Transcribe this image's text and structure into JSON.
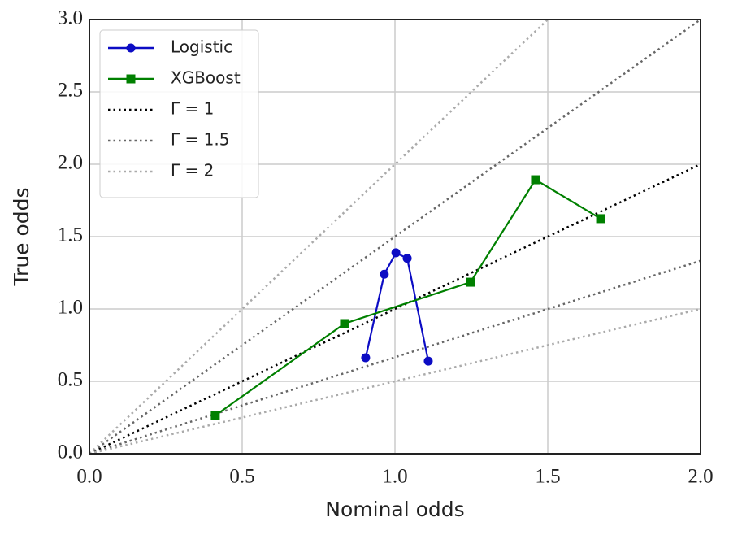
{
  "chart_data": {
    "type": "line",
    "xlabel": "Nominal odds",
    "ylabel": "True odds",
    "xlim": [
      0,
      2
    ],
    "ylim": [
      0,
      3
    ],
    "xticks": [
      {
        "value": 0,
        "label": "0.0"
      },
      0.5,
      {
        "value": 1,
        "label": "1.0"
      },
      1.5,
      {
        "value": 2,
        "label": "2.0"
      }
    ],
    "yticks": [
      {
        "value": 0,
        "label": "0.0"
      },
      0.5,
      {
        "value": 1,
        "label": "1.0"
      },
      1.5,
      {
        "value": 2,
        "label": "2.0"
      },
      2.5,
      {
        "value": 3,
        "label": "3.0"
      }
    ],
    "grid": true,
    "legend": "upper left",
    "series": [
      {
        "name": "Logistic",
        "color": "#0c0cc4",
        "marker": "circle",
        "linestyle": "solid",
        "x": [
          0.904,
          0.965,
          1.003,
          1.04,
          1.109
        ],
        "values": [
          0.663,
          1.24,
          1.388,
          1.35,
          0.64
        ]
      },
      {
        "name": "XGBoost",
        "color": "#008000",
        "marker": "square",
        "linestyle": "solid",
        "x": [
          0.412,
          0.835,
          1.247,
          1.46,
          1.673
        ],
        "values": [
          0.264,
          0.899,
          1.185,
          1.893,
          1.624
        ]
      }
    ],
    "reference_lines": [
      {
        "name": "Γ = 1",
        "color": "#000000",
        "linestyle": "dotted",
        "segments": [
          {
            "x": [
              0,
              2
            ],
            "values": [
              0,
              2
            ]
          }
        ]
      },
      {
        "name": "Γ = 1.5",
        "color": "#666666",
        "linestyle": "dotted",
        "segments": [
          {
            "x": [
              0,
              2
            ],
            "values": [
              0,
              3
            ]
          },
          {
            "x": [
              0,
              2
            ],
            "values": [
              0,
              1.333
            ]
          }
        ]
      },
      {
        "name": "Γ = 2",
        "color": "#aaaaaa",
        "linestyle": "dotted",
        "segments": [
          {
            "x": [
              0,
              1.5
            ],
            "values": [
              0,
              3
            ]
          },
          {
            "x": [
              0,
              2
            ],
            "values": [
              0,
              1
            ]
          }
        ]
      }
    ]
  }
}
